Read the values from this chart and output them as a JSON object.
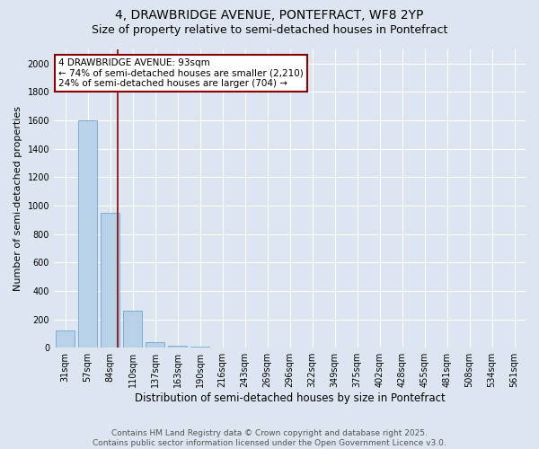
{
  "title1": "4, DRAWBRIDGE AVENUE, PONTEFRACT, WF8 2YP",
  "title2": "Size of property relative to semi-detached houses in Pontefract",
  "xlabel": "Distribution of semi-detached houses by size in Pontefract",
  "ylabel": "Number of semi-detached properties",
  "categories": [
    "31sqm",
    "57sqm",
    "84sqm",
    "110sqm",
    "137sqm",
    "163sqm",
    "190sqm",
    "216sqm",
    "243sqm",
    "269sqm",
    "296sqm",
    "322sqm",
    "349sqm",
    "375sqm",
    "402sqm",
    "428sqm",
    "455sqm",
    "481sqm",
    "508sqm",
    "534sqm",
    "561sqm"
  ],
  "values": [
    120,
    1600,
    950,
    260,
    40,
    15,
    10,
    0,
    0,
    0,
    0,
    0,
    0,
    0,
    0,
    0,
    0,
    0,
    0,
    0,
    0
  ],
  "bar_color": "#b8d0e8",
  "bar_edge_color": "#7bafd4",
  "red_line_x": 2.35,
  "annotation_line1": "4 DRAWBRIDGE AVENUE: 93sqm",
  "annotation_line2": "← 74% of semi-detached houses are smaller (2,210)",
  "annotation_line3": "24% of semi-detached houses are larger (704) →",
  "ylim": [
    0,
    2100
  ],
  "yticks": [
    0,
    200,
    400,
    600,
    800,
    1000,
    1200,
    1400,
    1600,
    1800,
    2000
  ],
  "background_color": "#dde6f0",
  "plot_bg_color": "#dde6f0",
  "footer_text": "Contains HM Land Registry data © Crown copyright and database right 2025.\nContains public sector information licensed under the Open Government Licence v3.0.",
  "title1_fontsize": 10,
  "title2_fontsize": 9,
  "xlabel_fontsize": 8.5,
  "ylabel_fontsize": 8,
  "annotation_fontsize": 7.5,
  "footer_fontsize": 6.5,
  "tick_fontsize": 7
}
